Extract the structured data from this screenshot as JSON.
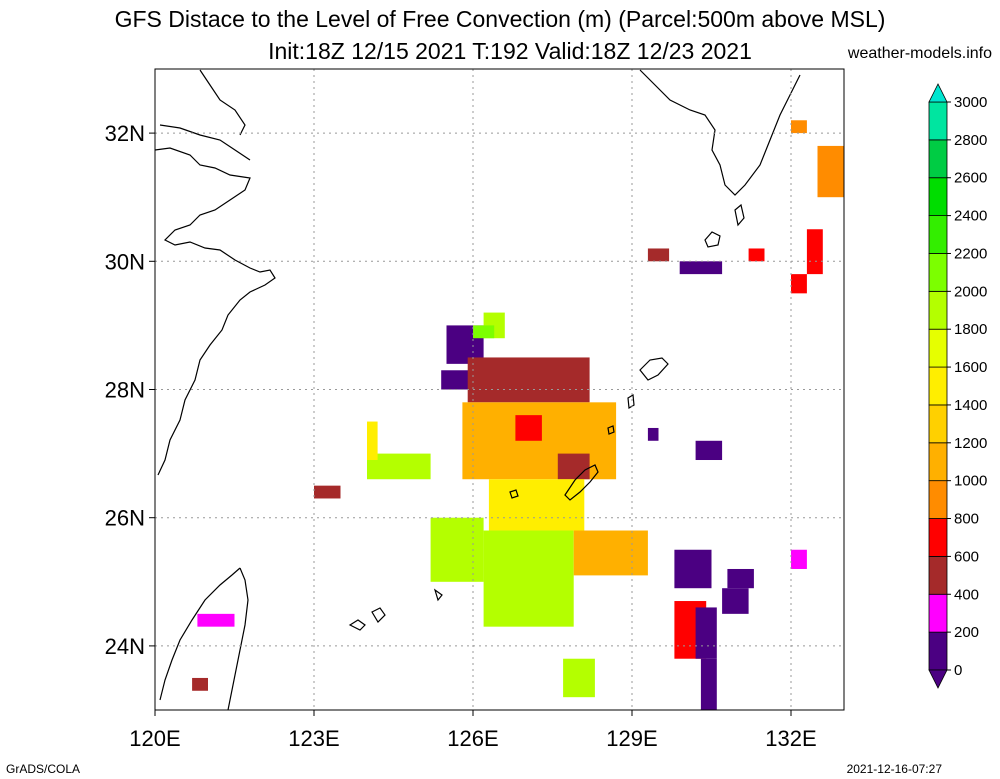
{
  "header": {
    "title_line1": "GFS Distace to the Level of Free Convection (m) (Parcel:500m above MSL)",
    "title_line2": "Init:18Z 12/15 2021 T:192 Valid:18Z 12/23 2021",
    "site": "weather-models.info"
  },
  "footer": {
    "credit": "GrADS/COLA",
    "timestamp": "2021-12-16-07:27"
  },
  "chart_data": {
    "type": "heatmap",
    "title": "GFS Distace to the Level of Free Convection (m) (Parcel:500m above MSL)",
    "subtitle": "Init:18Z 12/15 2021 T:192 Valid:18Z 12/23 2021",
    "xlim": [
      120,
      133
    ],
    "ylim": [
      23,
      33
    ],
    "x_ticks": [
      120,
      123,
      126,
      129,
      132
    ],
    "x_tick_labels": [
      "120E",
      "123E",
      "126E",
      "129E",
      "132E"
    ],
    "y_ticks": [
      24,
      26,
      28,
      30,
      32
    ],
    "y_tick_labels": [
      "24N",
      "26N",
      "28N",
      "30N",
      "32N"
    ],
    "grid": true,
    "colorbar": {
      "levels": [
        0,
        200,
        400,
        600,
        800,
        1000,
        1200,
        1400,
        1600,
        1800,
        2000,
        2200,
        2400,
        2600,
        2800,
        3000
      ],
      "labels": [
        "0",
        "200",
        "400",
        "600",
        "800",
        "1000",
        "1200",
        "1400",
        "1600",
        "1800",
        "2000",
        "2200",
        "2400",
        "2600",
        "2800",
        "3000"
      ],
      "colors": [
        "#4b0082",
        "#ff00ff",
        "#a52a2a",
        "#ff0000",
        "#ff8c00",
        "#ffb000",
        "#ffd000",
        "#ffee00",
        "#e6ff00",
        "#b4ff00",
        "#7cff00",
        "#33ee00",
        "#00dd00",
        "#00cc44",
        "#00e5a0",
        "#00f0d8"
      ],
      "under_color": "#4b0082",
      "over_color": "#00e5d0"
    },
    "regions": [
      {
        "lon": [
          125.5,
          126.2
        ],
        "lat": [
          28.4,
          29.0
        ],
        "value": 150
      },
      {
        "lon": [
          126.2,
          126.6
        ],
        "lat": [
          28.8,
          29.2
        ],
        "value": 1900
      },
      {
        "lon": [
          125.4,
          126.0
        ],
        "lat": [
          28.0,
          28.3
        ],
        "value": 50
      },
      {
        "lon": [
          125.9,
          128.2
        ],
        "lat": [
          27.8,
          28.5
        ],
        "value": 550
      },
      {
        "lon": [
          125.8,
          128.7
        ],
        "lat": [
          26.6,
          27.8
        ],
        "value": 1050
      },
      {
        "lon": [
          126.8,
          127.3
        ],
        "lat": [
          27.2,
          27.6
        ],
        "value": 600
      },
      {
        "lon": [
          127.6,
          128.2
        ],
        "lat": [
          26.6,
          27.0
        ],
        "value": 500
      },
      {
        "lon": [
          126.3,
          128.1
        ],
        "lat": [
          25.8,
          26.6
        ],
        "value": 1400
      },
      {
        "lon": [
          125.2,
          126.2
        ],
        "lat": [
          25.0,
          26.0
        ],
        "value": 1900
      },
      {
        "lon": [
          126.2,
          127.9
        ],
        "lat": [
          24.3,
          25.8
        ],
        "value": 1950
      },
      {
        "lon": [
          127.9,
          129.3
        ],
        "lat": [
          25.1,
          25.8
        ],
        "value": 1050
      },
      {
        "lon": [
          124.0,
          125.2
        ],
        "lat": [
          26.6,
          27.0
        ],
        "value": 1900
      },
      {
        "lon": [
          124.0,
          124.2
        ],
        "lat": [
          26.9,
          27.5
        ],
        "value": 1500
      },
      {
        "lon": [
          123.0,
          123.5
        ],
        "lat": [
          26.3,
          26.5
        ],
        "value": 500
      },
      {
        "lon": [
          129.3,
          129.7
        ],
        "lat": [
          30.0,
          30.2
        ],
        "value": 500
      },
      {
        "lon": [
          129.9,
          130.7
        ],
        "lat": [
          29.8,
          30.0
        ],
        "value": 150
      },
      {
        "lon": [
          129.3,
          129.5
        ],
        "lat": [
          27.2,
          27.4
        ],
        "value": 50
      },
      {
        "lon": [
          130.2,
          130.7
        ],
        "lat": [
          26.9,
          27.2
        ],
        "value": 50
      },
      {
        "lon": [
          129.8,
          130.5
        ],
        "lat": [
          24.9,
          25.5
        ],
        "value": 50
      },
      {
        "lon": [
          129.8,
          130.4
        ],
        "lat": [
          23.8,
          24.7
        ],
        "value": 700
      },
      {
        "lon": [
          130.2,
          130.6
        ],
        "lat": [
          23.8,
          24.6
        ],
        "value": 80
      },
      {
        "lon": [
          130.3,
          130.6
        ],
        "lat": [
          23.0,
          23.8
        ],
        "value": 150
      },
      {
        "lon": [
          130.8,
          131.3
        ],
        "lat": [
          24.9,
          25.2
        ],
        "value": 50
      },
      {
        "lon": [
          130.7,
          131.2
        ],
        "lat": [
          24.5,
          24.9
        ],
        "value": 150
      },
      {
        "lon": [
          132.0,
          132.3
        ],
        "lat": [
          32.0,
          32.2
        ],
        "value": 900
      },
      {
        "lon": [
          132.5,
          133.0
        ],
        "lat": [
          31.0,
          31.8
        ],
        "value": 900
      },
      {
        "lon": [
          132.3,
          132.6
        ],
        "lat": [
          29.8,
          30.5
        ],
        "value": 650
      },
      {
        "lon": [
          132.0,
          132.3
        ],
        "lat": [
          29.5,
          29.8
        ],
        "value": 650
      },
      {
        "lon": [
          131.2,
          131.5
        ],
        "lat": [
          30.0,
          30.2
        ],
        "value": 650
      },
      {
        "lon": [
          132.0,
          132.3
        ],
        "lat": [
          25.2,
          25.5
        ],
        "value": 350
      },
      {
        "lon": [
          120.8,
          121.5
        ],
        "lat": [
          24.3,
          24.5
        ],
        "value": 350
      },
      {
        "lon": [
          120.7,
          121.0
        ],
        "lat": [
          23.3,
          23.5
        ],
        "value": 500
      },
      {
        "lon": [
          127.7,
          128.3
        ],
        "lat": [
          23.2,
          23.8
        ],
        "value": 1950
      },
      {
        "lon": [
          126.0,
          126.4
        ],
        "lat": [
          28.8,
          29.0
        ],
        "value": 2100
      }
    ]
  }
}
